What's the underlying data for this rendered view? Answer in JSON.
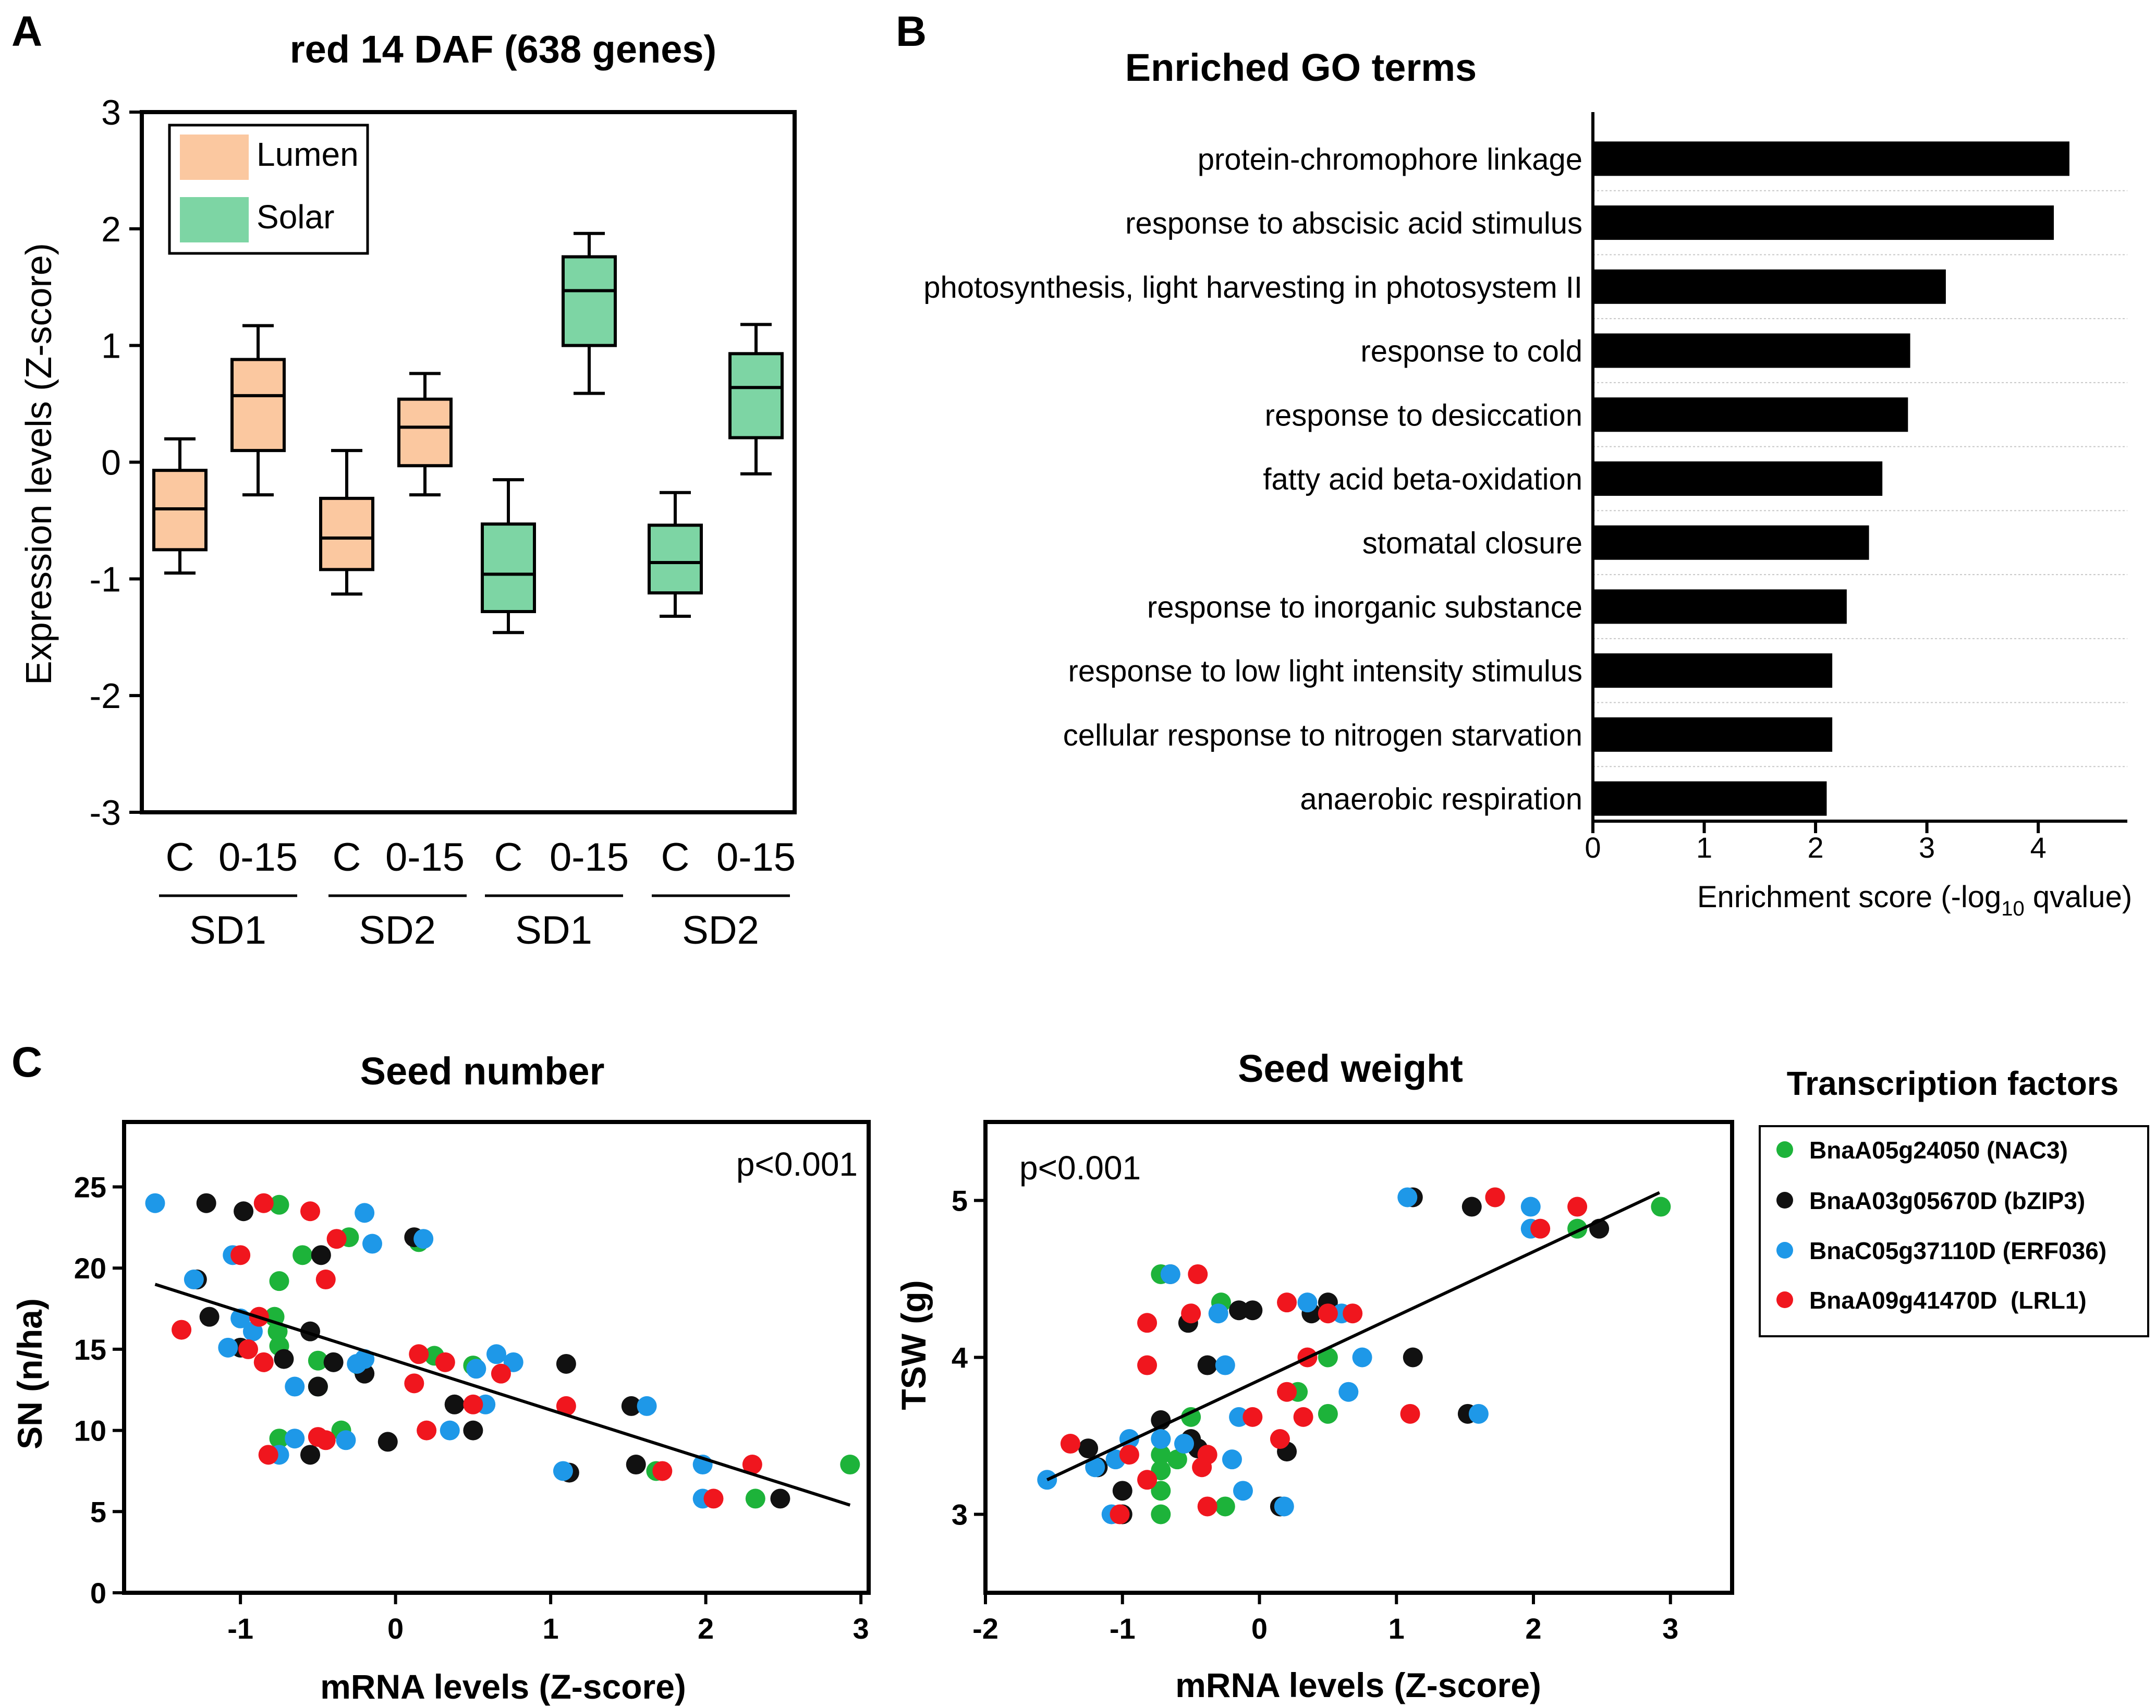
{
  "figure": {
    "panel_labels": [
      "A",
      "B",
      "C"
    ]
  },
  "chart_data": [
    {
      "id": "A",
      "type": "box",
      "title": "red 14 DAF (638 genes)",
      "ylabel": "Expression levels (Z-score)",
      "ylim": [
        -3,
        3
      ],
      "yticks": [
        3,
        2,
        1,
        0,
        -1,
        -2,
        -3
      ],
      "legend": {
        "position": "top-left",
        "items": [
          {
            "label": "Lumen",
            "color": "#FBC8A0"
          },
          {
            "label": "Solar",
            "color": "#7DD5A4"
          }
        ]
      },
      "boxes": [
        {
          "label": "C",
          "group": "SD1",
          "series": "Lumen",
          "color": "#FBC8A0",
          "min": -0.95,
          "q1": -0.75,
          "median": -0.4,
          "q3": -0.07,
          "max": 0.2
        },
        {
          "label": "0-15",
          "group": "SD1",
          "series": "Lumen",
          "color": "#FBC8A0",
          "min": -0.28,
          "q1": 0.1,
          "median": 0.57,
          "q3": 0.88,
          "max": 1.17
        },
        {
          "label": "C",
          "group": "SD2",
          "series": "Lumen",
          "color": "#FBC8A0",
          "min": -1.13,
          "q1": -0.92,
          "median": -0.65,
          "q3": -0.31,
          "max": 0.1
        },
        {
          "label": "0-15",
          "group": "SD2",
          "series": "Lumen",
          "color": "#FBC8A0",
          "min": -0.28,
          "q1": -0.03,
          "median": 0.3,
          "q3": 0.54,
          "max": 0.76
        },
        {
          "label": "C",
          "group": "SD1",
          "series": "Solar",
          "color": "#7DD5A4",
          "min": -1.46,
          "q1": -1.28,
          "median": -0.96,
          "q3": -0.53,
          "max": -0.15
        },
        {
          "label": "0-15",
          "group": "SD1",
          "series": "Solar",
          "color": "#7DD5A4",
          "min": 0.59,
          "q1": 1.0,
          "median": 1.47,
          "q3": 1.76,
          "max": 1.96
        },
        {
          "label": "C",
          "group": "SD2",
          "series": "Solar",
          "color": "#7DD5A4",
          "min": -1.32,
          "q1": -1.12,
          "median": -0.86,
          "q3": -0.54,
          "max": -0.26
        },
        {
          "label": "0-15",
          "group": "SD2",
          "series": "Solar",
          "color": "#7DD5A4",
          "min": -0.1,
          "q1": 0.21,
          "median": 0.64,
          "q3": 0.93,
          "max": 1.18
        }
      ],
      "groups": [
        "SD1",
        "SD2",
        "SD1",
        "SD2"
      ]
    },
    {
      "id": "B",
      "type": "bar",
      "orientation": "horizontal",
      "title": "Enriched GO terms",
      "xlabel": "Enrichment score (-log10 qvalue)",
      "xlabel_parts": [
        "Enrichment score (-log",
        "10",
        " qvalue)"
      ],
      "xlim": [
        0,
        4.8
      ],
      "xticks": [
        0,
        1,
        2,
        3,
        4
      ],
      "color": "#000000",
      "categories": [
        "protein-chromophore linkage",
        "response to abscisic acid stimulus",
        "photosynthesis, light harvesting in photosystem II",
        "response to cold",
        "response to desiccation",
        "fatty acid beta-oxidation",
        "stomatal closure",
        "response to inorganic substance",
        "response to low light intensity stimulus",
        "cellular response to nitrogen starvation",
        "anaerobic respiration"
      ],
      "values": [
        4.28,
        4.14,
        3.17,
        2.85,
        2.83,
        2.6,
        2.48,
        2.28,
        2.15,
        2.15,
        2.1
      ]
    },
    {
      "id": "C1",
      "type": "scatter",
      "title": "Seed number",
      "xlabel": "mRNA levels (Z-score)",
      "ylabel": "SN (n/ha)",
      "xlim": [
        -1.75,
        3.05
      ],
      "ylim": [
        0,
        29
      ],
      "xticks": [
        -1,
        0,
        1,
        2,
        3
      ],
      "yticks": [
        0,
        5,
        10,
        15,
        20,
        25
      ],
      "annotation": "p<0.001",
      "trendline": {
        "x": [
          -1.55,
          2.93
        ],
        "y": [
          19.0,
          5.4
        ]
      },
      "series": [
        {
          "name": "BnaA05g24050 (NAC3)",
          "color": "#1DB33A",
          "points": [
            [
              -0.75,
              23.9
            ],
            [
              -0.6,
              20.8
            ],
            [
              -0.3,
              21.9
            ],
            [
              0.15,
              21.6
            ],
            [
              -0.75,
              19.2
            ],
            [
              -0.78,
              17.0
            ],
            [
              -0.76,
              16.1
            ],
            [
              -0.75,
              15.2
            ],
            [
              -0.5,
              14.3
            ],
            [
              -0.22,
              13.9
            ],
            [
              0.25,
              14.6
            ],
            [
              0.5,
              14.0
            ],
            [
              -0.5,
              12.7
            ],
            [
              -0.75,
              9.5
            ],
            [
              -0.35,
              10.0
            ],
            [
              1.68,
              7.5
            ],
            [
              2.32,
              5.8
            ],
            [
              2.93,
              7.9
            ]
          ]
        },
        {
          "name": "BnaA03g05670D (bZIP3)",
          "color": "#111111",
          "points": [
            [
              -1.22,
              24.0
            ],
            [
              -0.98,
              23.5
            ],
            [
              -0.48,
              20.8
            ],
            [
              0.12,
              21.9
            ],
            [
              -1.28,
              19.3
            ],
            [
              -1.2,
              17.0
            ],
            [
              -0.55,
              16.1
            ],
            [
              -1.0,
              15.1
            ],
            [
              -0.72,
              14.4
            ],
            [
              -0.4,
              14.2
            ],
            [
              -0.2,
              13.5
            ],
            [
              1.1,
              14.1
            ],
            [
              -0.5,
              12.7
            ],
            [
              0.38,
              11.6
            ],
            [
              1.52,
              11.5
            ],
            [
              0.5,
              10.0
            ],
            [
              -0.05,
              9.3
            ],
            [
              -0.55,
              8.5
            ],
            [
              1.55,
              7.9
            ],
            [
              1.12,
              7.4
            ],
            [
              2.48,
              5.8
            ]
          ]
        },
        {
          "name": "BnaC05g37110D (ERF036)",
          "color": "#1E98E8",
          "points": [
            [
              -1.55,
              24.0
            ],
            [
              -0.2,
              23.4
            ],
            [
              -0.15,
              21.5
            ],
            [
              0.18,
              21.8
            ],
            [
              -1.05,
              20.8
            ],
            [
              -1.3,
              19.3
            ],
            [
              -1.0,
              16.9
            ],
            [
              -0.92,
              16.1
            ],
            [
              -1.08,
              15.1
            ],
            [
              -0.2,
              14.4
            ],
            [
              -0.25,
              14.1
            ],
            [
              0.65,
              14.7
            ],
            [
              0.76,
              14.2
            ],
            [
              0.52,
              13.8
            ],
            [
              -0.65,
              12.7
            ],
            [
              0.58,
              11.6
            ],
            [
              1.62,
              11.5
            ],
            [
              0.35,
              10.0
            ],
            [
              -0.65,
              9.5
            ],
            [
              -0.32,
              9.4
            ],
            [
              -0.75,
              8.5
            ],
            [
              1.08,
              7.5
            ],
            [
              1.98,
              7.9
            ],
            [
              1.98,
              5.8
            ]
          ]
        },
        {
          "name": "BnaA09g41470D (LRL1)",
          "color": "#F0161E",
          "points": [
            [
              -0.85,
              24.0
            ],
            [
              -0.55,
              23.5
            ],
            [
              -0.38,
              21.8
            ],
            [
              -1.0,
              20.8
            ],
            [
              -0.45,
              19.3
            ],
            [
              -1.38,
              16.2
            ],
            [
              -0.88,
              17.0
            ],
            [
              -0.95,
              15.0
            ],
            [
              -0.85,
              14.2
            ],
            [
              0.15,
              14.7
            ],
            [
              0.32,
              14.2
            ],
            [
              0.68,
              13.5
            ],
            [
              0.12,
              12.9
            ],
            [
              0.5,
              11.6
            ],
            [
              1.1,
              11.5
            ],
            [
              0.2,
              10.0
            ],
            [
              -0.82,
              8.5
            ],
            [
              -0.5,
              9.6
            ],
            [
              -0.45,
              9.4
            ],
            [
              1.72,
              7.5
            ],
            [
              2.05,
              5.8
            ],
            [
              2.3,
              7.9
            ]
          ]
        }
      ]
    },
    {
      "id": "C2",
      "type": "scatter",
      "title": "Seed weight",
      "xlabel": "mRNA levels (Z-score)",
      "ylabel": "TSW (g)",
      "xlim": [
        -2,
        3.45
      ],
      "ylim": [
        2.5,
        5.5
      ],
      "xticks": [
        -2,
        -1,
        0,
        1,
        2,
        3
      ],
      "yticks": [
        3,
        4,
        5
      ],
      "annotation": "p<0.001",
      "trendline": {
        "x": [
          -1.55,
          2.92
        ],
        "y": [
          3.22,
          5.05
        ]
      },
      "series": [
        {
          "name": "BnaA05g24050 (NAC3)",
          "color": "#1DB33A",
          "points": [
            [
              -0.72,
              4.53
            ],
            [
              -0.28,
              4.35
            ],
            [
              0.5,
              4.0
            ],
            [
              0.28,
              3.78
            ],
            [
              -0.5,
              3.62
            ],
            [
              0.5,
              3.64
            ],
            [
              -0.72,
              3.48
            ],
            [
              -0.72,
              3.38
            ],
            [
              -0.6,
              3.35
            ],
            [
              -0.72,
              3.28
            ],
            [
              -0.72,
              3.15
            ],
            [
              -0.72,
              3.0
            ],
            [
              -0.25,
              3.05
            ],
            [
              1.72,
              5.02
            ],
            [
              2.32,
              4.82
            ],
            [
              2.93,
              4.96
            ]
          ]
        },
        {
          "name": "BnaA03g05670D (bZIP3)",
          "color": "#111111",
          "points": [
            [
              -0.65,
              4.53
            ],
            [
              -0.52,
              4.22
            ],
            [
              -0.15,
              4.3
            ],
            [
              -0.05,
              4.3
            ],
            [
              0.38,
              4.28
            ],
            [
              0.5,
              4.35
            ],
            [
              -0.38,
              3.95
            ],
            [
              1.12,
              4.0
            ],
            [
              -0.72,
              3.6
            ],
            [
              -0.5,
              3.48
            ],
            [
              -0.45,
              3.42
            ],
            [
              0.2,
              3.4
            ],
            [
              -1.18,
              3.3
            ],
            [
              -1.25,
              3.42
            ],
            [
              -1.0,
              3.15
            ],
            [
              -1.0,
              3.0
            ],
            [
              0.15,
              3.05
            ],
            [
              1.12,
              5.02
            ],
            [
              1.55,
              4.96
            ],
            [
              2.48,
              4.82
            ],
            [
              1.52,
              3.64
            ]
          ]
        },
        {
          "name": "BnaC05g37110D (ERF036)",
          "color": "#1E98E8",
          "points": [
            [
              -0.65,
              4.53
            ],
            [
              -0.3,
              4.28
            ],
            [
              0.35,
              4.35
            ],
            [
              0.6,
              4.28
            ],
            [
              -0.25,
              3.95
            ],
            [
              0.75,
              4.0
            ],
            [
              0.65,
              3.78
            ],
            [
              -0.15,
              3.62
            ],
            [
              -0.72,
              3.48
            ],
            [
              -0.95,
              3.48
            ],
            [
              -1.05,
              3.35
            ],
            [
              -1.2,
              3.3
            ],
            [
              -1.55,
              3.22
            ],
            [
              -0.55,
              3.45
            ],
            [
              -0.2,
              3.35
            ],
            [
              -0.12,
              3.15
            ],
            [
              0.18,
              3.05
            ],
            [
              -1.08,
              3.0
            ],
            [
              1.08,
              5.02
            ],
            [
              1.98,
              4.96
            ],
            [
              1.98,
              4.82
            ],
            [
              1.6,
              3.64
            ]
          ]
        },
        {
          "name": "BnaA09g41470D (LRL1)",
          "color": "#F0161E",
          "points": [
            [
              -0.45,
              4.53
            ],
            [
              -0.82,
              4.22
            ],
            [
              -0.5,
              4.28
            ],
            [
              0.2,
              4.35
            ],
            [
              0.5,
              4.28
            ],
            [
              0.68,
              4.28
            ],
            [
              -0.82,
              3.95
            ],
            [
              0.35,
              4.0
            ],
            [
              0.2,
              3.78
            ],
            [
              0.32,
              3.62
            ],
            [
              -0.05,
              3.62
            ],
            [
              -1.38,
              3.45
            ],
            [
              -0.95,
              3.38
            ],
            [
              -0.82,
              3.22
            ],
            [
              -0.38,
              3.38
            ],
            [
              -0.42,
              3.3
            ],
            [
              -0.38,
              3.05
            ],
            [
              0.15,
              3.48
            ],
            [
              -1.02,
              3.0
            ],
            [
              1.72,
              5.02
            ],
            [
              2.32,
              4.96
            ],
            [
              2.05,
              4.82
            ],
            [
              1.1,
              3.64
            ]
          ]
        }
      ]
    }
  ],
  "legend_C": {
    "title": "Transcription factors",
    "items": [
      {
        "label": "BnaA05g24050 (NAC3)",
        "color": "#1DB33A"
      },
      {
        "label": "BnaA03g05670D (bZIP3)",
        "color": "#111111"
      },
      {
        "label": "BnaC05g37110D (ERF036)",
        "color": "#1E98E8"
      },
      {
        "label": "BnaA09g41470D  (LRL1)",
        "color": "#F0161E"
      }
    ]
  }
}
